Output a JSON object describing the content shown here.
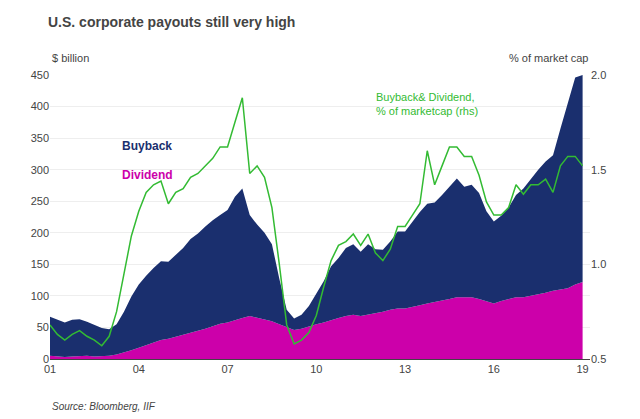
{
  "chart_data": {
    "type": "area",
    "stacked": true,
    "title": "U.S. corporate payouts still very high",
    "ylabel": "$ billion",
    "y2label": "% of market cap",
    "source": "Source: Bloomberg, IIF",
    "grid": true,
    "x": [
      2001.0,
      2001.25,
      2001.5,
      2001.75,
      2002.0,
      2002.25,
      2002.5,
      2002.75,
      2003.0,
      2003.25,
      2003.5,
      2003.75,
      2004.0,
      2004.25,
      2004.5,
      2004.75,
      2005.0,
      2005.25,
      2005.5,
      2005.75,
      2006.0,
      2006.25,
      2006.5,
      2006.75,
      2007.0,
      2007.25,
      2007.5,
      2007.75,
      2008.0,
      2008.25,
      2008.5,
      2008.75,
      2009.0,
      2009.25,
      2009.5,
      2009.75,
      2010.0,
      2010.25,
      2010.5,
      2010.75,
      2011.0,
      2011.25,
      2011.5,
      2011.75,
      2012.0,
      2012.25,
      2012.5,
      2012.75,
      2013.0,
      2013.25,
      2013.5,
      2013.75,
      2014.0,
      2014.25,
      2014.5,
      2014.75,
      2015.0,
      2015.25,
      2015.5,
      2015.75,
      2016.0,
      2016.25,
      2016.5,
      2016.75,
      2017.0,
      2017.25,
      2017.5,
      2017.75,
      2018.0,
      2018.25,
      2018.5,
      2018.75,
      2019.0
    ],
    "xlim": [
      2001,
      2019.25
    ],
    "xticks": [
      {
        "value": 2001,
        "label": "01"
      },
      {
        "value": 2004,
        "label": "04"
      },
      {
        "value": 2007,
        "label": "07"
      },
      {
        "value": 2010,
        "label": "10"
      },
      {
        "value": 2013,
        "label": "13"
      },
      {
        "value": 2016,
        "label": "16"
      },
      {
        "value": 2019,
        "label": "19"
      }
    ],
    "ylim": [
      0,
      450
    ],
    "yticks": [
      0,
      50,
      100,
      150,
      200,
      250,
      300,
      350,
      400,
      450
    ],
    "y2lim": [
      0.5,
      2.0
    ],
    "y2ticks": [
      0.5,
      {
        "value": 1.0,
        "label": "1.0"
      },
      1.5,
      {
        "value": 2.0,
        "label": "2.0"
      }
    ],
    "series": [
      {
        "name": "Dividend",
        "color": "#cc00aa",
        "type": "area",
        "values": [
          5,
          4,
          3,
          4,
          5,
          5,
          4,
          4,
          5,
          7,
          10,
          14,
          18,
          22,
          26,
          30,
          32,
          35,
          38,
          42,
          44,
          48,
          52,
          56,
          58,
          62,
          65,
          68,
          65,
          62,
          60,
          55,
          50,
          46,
          48,
          52,
          55,
          58,
          62,
          65,
          68,
          70,
          68,
          70,
          72,
          75,
          78,
          80,
          80,
          82,
          85,
          88,
          90,
          92,
          95,
          98,
          98,
          98,
          95,
          92,
          88,
          92,
          95,
          98,
          98,
          100,
          102,
          105,
          108,
          110,
          112,
          118,
          122
        ]
      },
      {
        "name": "Buyback",
        "color": "#1a2f6e",
        "type": "area",
        "values": [
          62,
          58,
          55,
          58,
          58,
          54,
          50,
          45,
          42,
          48,
          65,
          85,
          100,
          110,
          118,
          125,
          122,
          130,
          138,
          148,
          155,
          162,
          168,
          172,
          178,
          195,
          205,
          160,
          148,
          138,
          122,
          72,
          28,
          18,
          22,
          32,
          48,
          65,
          85,
          95,
          108,
          112,
          102,
          112,
          102,
          98,
          108,
          122,
          122,
          135,
          148,
          158,
          158,
          168,
          178,
          188,
          175,
          178,
          168,
          142,
          130,
          135,
          145,
          162,
          172,
          185,
          198,
          208,
          215,
          255,
          295,
          328,
          328
        ]
      },
      {
        "name": "Buyback& Dividend,\n% of marketcap (rhs)",
        "color": "#33bb33",
        "type": "line",
        "axis": "y2",
        "values": [
          0.68,
          0.63,
          0.6,
          0.63,
          0.65,
          0.62,
          0.6,
          0.57,
          0.62,
          0.75,
          0.95,
          1.15,
          1.28,
          1.38,
          1.42,
          1.44,
          1.32,
          1.38,
          1.4,
          1.46,
          1.48,
          1.52,
          1.56,
          1.62,
          1.62,
          1.75,
          1.88,
          1.48,
          1.52,
          1.46,
          1.3,
          1.0,
          0.68,
          0.58,
          0.6,
          0.64,
          0.73,
          0.88,
          1.02,
          1.1,
          1.12,
          1.16,
          1.1,
          1.16,
          1.06,
          1.02,
          1.08,
          1.2,
          1.2,
          1.26,
          1.32,
          1.6,
          1.42,
          1.52,
          1.62,
          1.62,
          1.57,
          1.57,
          1.47,
          1.33,
          1.26,
          1.26,
          1.3,
          1.42,
          1.37,
          1.42,
          1.42,
          1.45,
          1.38,
          1.52,
          1.57,
          1.57,
          1.52
        ]
      }
    ]
  }
}
